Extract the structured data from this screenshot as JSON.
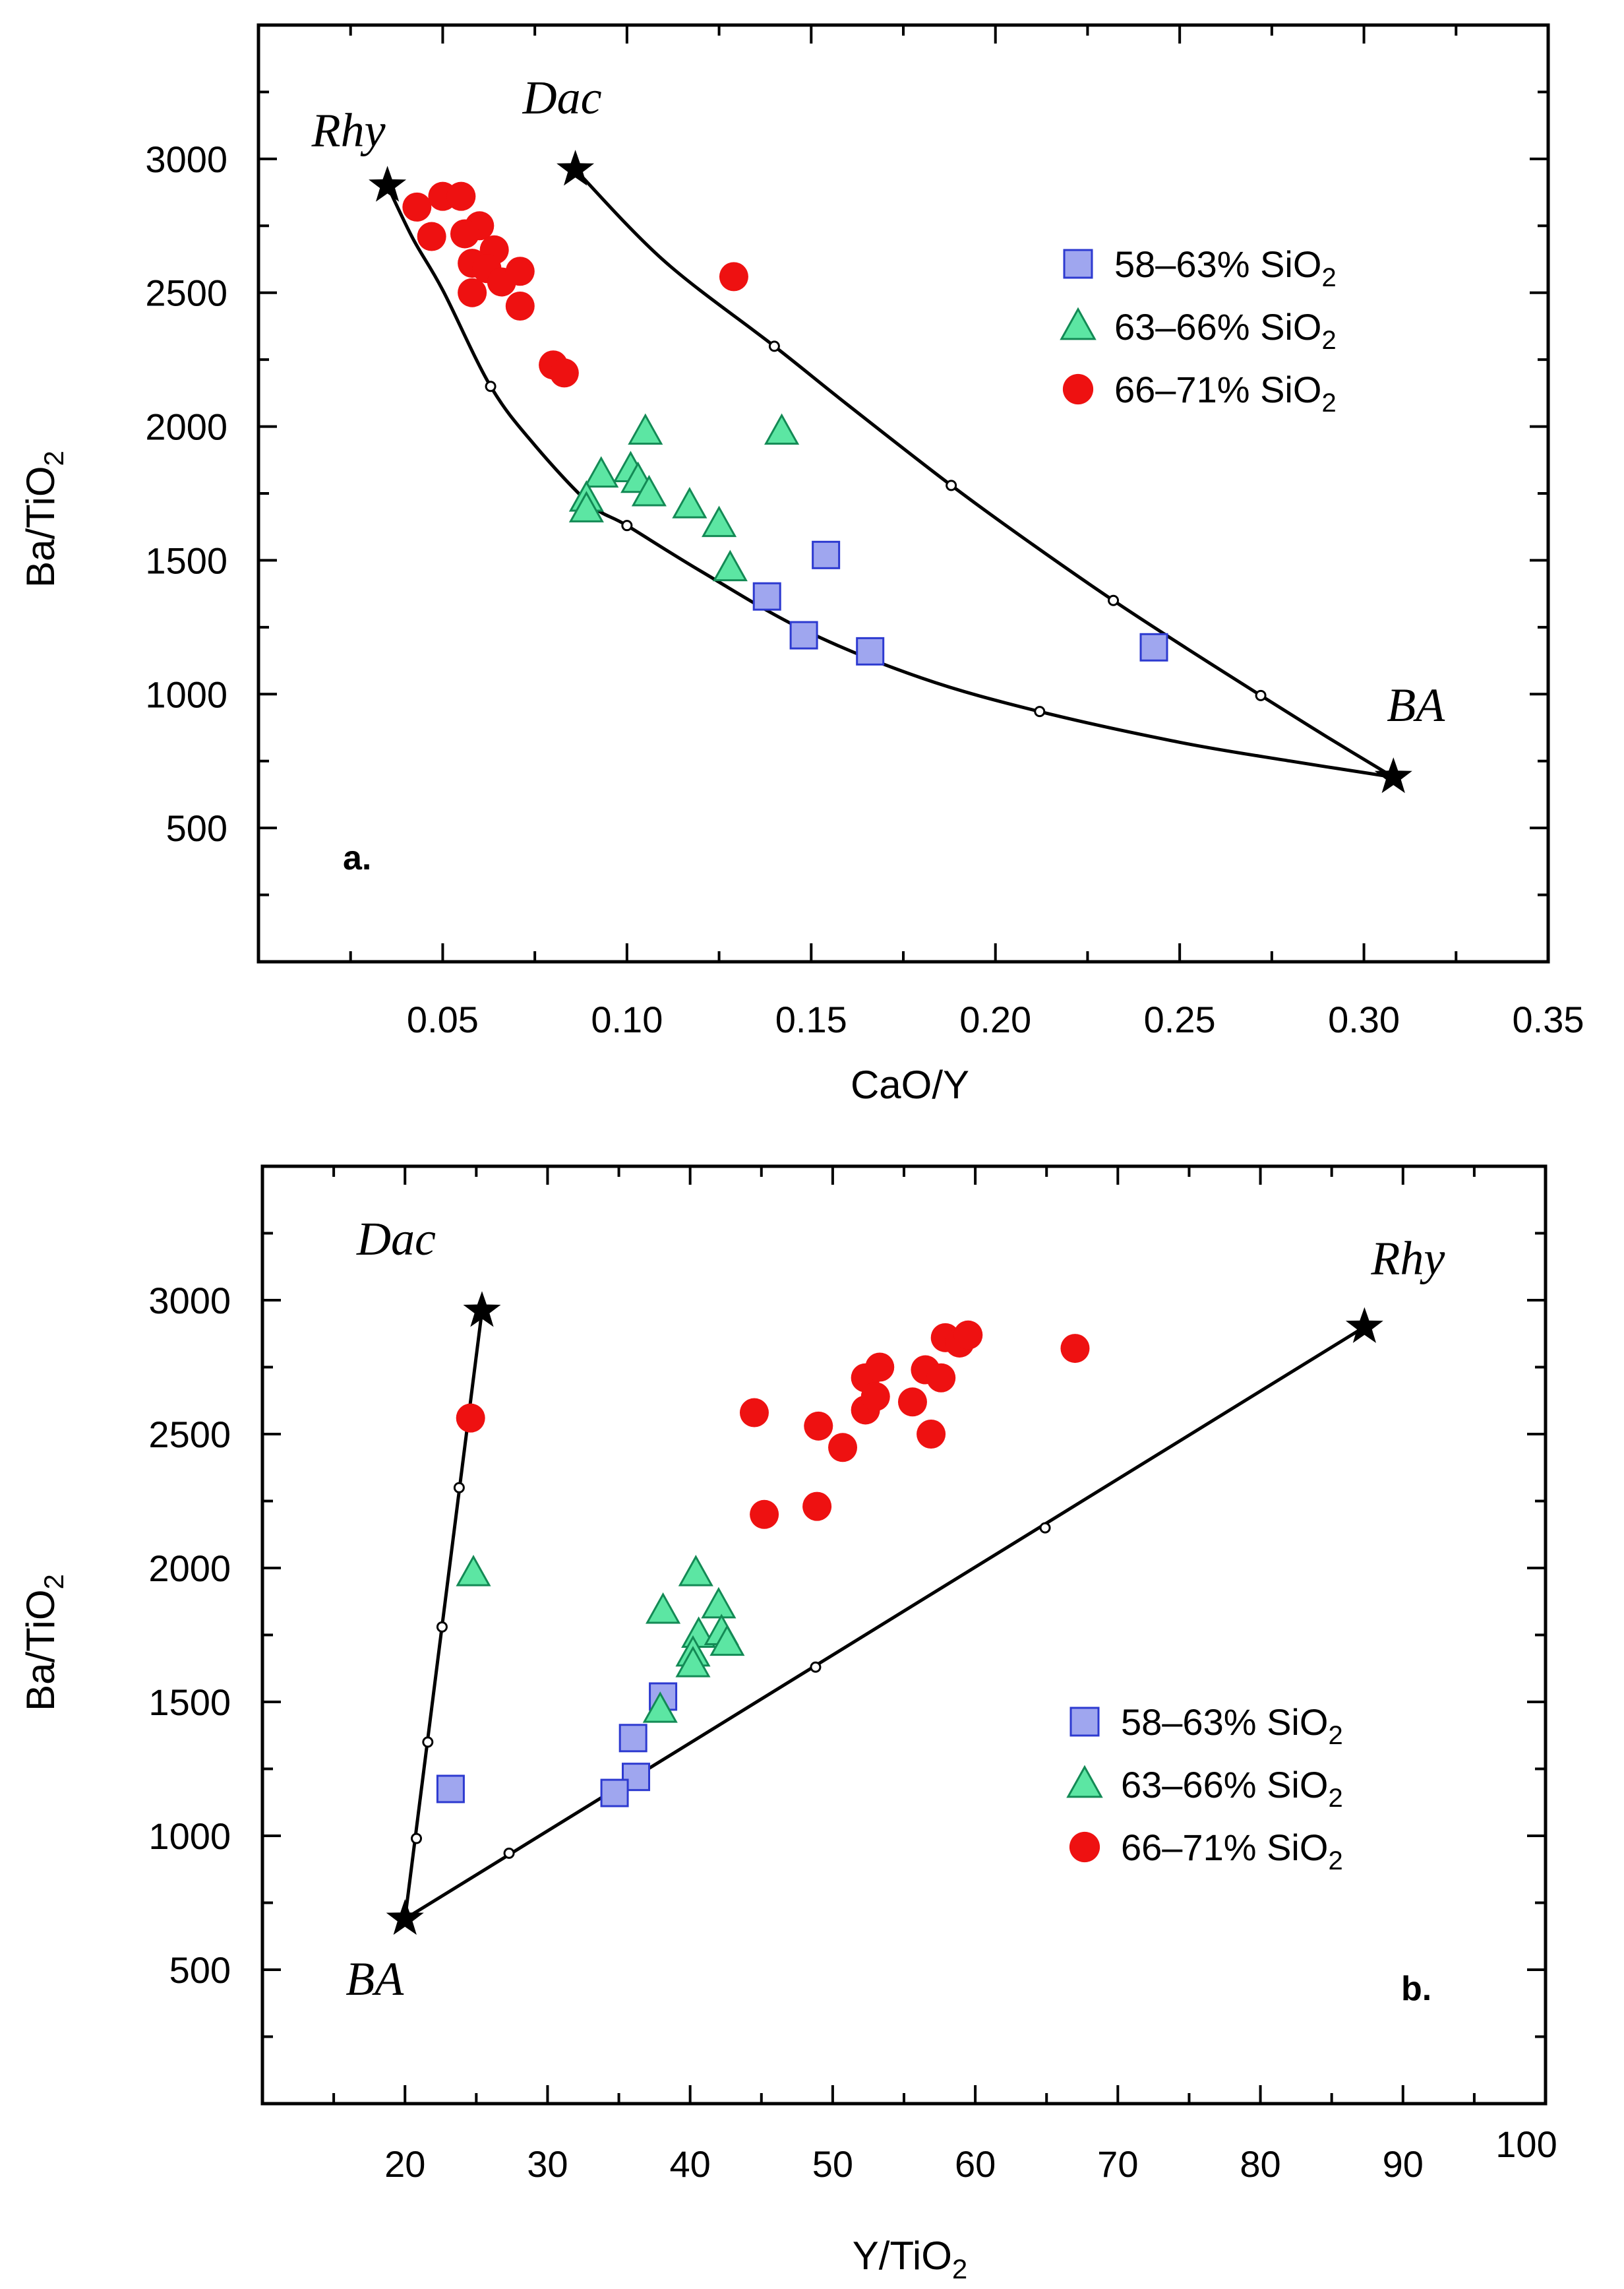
{
  "colors": {
    "square_fill": "#9fa6ef",
    "square_stroke": "#2d3ad0",
    "triangle_fill": "#5ce6a3",
    "triangle_stroke": "#138a55",
    "circle_fill": "#ee1111",
    "line": "#000000"
  },
  "chart_data": [
    {
      "type": "scatter",
      "panel_label": "a.",
      "xlabel": "CaO/Y",
      "ylabel_main": "Ba/TiO",
      "ylabel_sub": "2",
      "xlim": [
        0.0,
        0.35
      ],
      "ylim": [
        0,
        3500
      ],
      "xticks": [
        {
          "value": 0.05,
          "label": "0.05"
        },
        {
          "value": 0.1,
          "label": "0.10"
        },
        {
          "value": 0.15,
          "label": "0.15"
        },
        {
          "value": 0.2,
          "label": "0.20"
        },
        {
          "value": 0.25,
          "label": "0.25"
        },
        {
          "value": 0.3,
          "label": "0.30"
        },
        {
          "value": 0.35,
          "label": "0.35"
        }
      ],
      "yticks": [
        {
          "value": 500,
          "label": "500"
        },
        {
          "value": 1000,
          "label": "1000"
        },
        {
          "value": 1500,
          "label": "1500"
        },
        {
          "value": 2000,
          "label": "2000"
        },
        {
          "value": 2500,
          "label": "2500"
        },
        {
          "value": 3000,
          "label": "3000"
        }
      ],
      "legend": [
        {
          "marker": "square",
          "text": "58–63% SiO",
          "sub": "2"
        },
        {
          "marker": "triangle",
          "text": "63–66% SiO",
          "sub": "2"
        },
        {
          "marker": "circle",
          "text": "66–71% SiO",
          "sub": "2"
        }
      ],
      "endmembers": [
        {
          "name": "Rhy",
          "x": 0.035,
          "y": 2900
        },
        {
          "name": "Dac",
          "x": 0.086,
          "y": 2960
        },
        {
          "name": "BA",
          "x": 0.308,
          "y": 690
        }
      ],
      "mixing_curves": [
        {
          "name": "BA-Rhy",
          "points": [
            [
              0.035,
              2900
            ],
            [
              0.042,
              2700
            ],
            [
              0.05,
              2510
            ],
            [
              0.063,
              2150
            ],
            [
              0.075,
              1930
            ],
            [
              0.09,
              1710
            ],
            [
              0.1,
              1630
            ],
            [
              0.12,
              1460
            ],
            [
              0.148,
              1240
            ],
            [
              0.18,
              1060
            ],
            [
              0.212,
              935
            ],
            [
              0.25,
              820
            ],
            [
              0.28,
              750
            ],
            [
              0.308,
              690
            ]
          ],
          "tick_points": [
            [
              0.063,
              2150
            ],
            [
              0.1,
              1630
            ],
            [
              0.148,
              1240
            ],
            [
              0.212,
              935
            ]
          ]
        },
        {
          "name": "BA-Dac",
          "points": [
            [
              0.086,
              2960
            ],
            [
              0.11,
              2620
            ],
            [
              0.14,
              2300
            ],
            [
              0.16,
              2080
            ],
            [
              0.188,
              1780
            ],
            [
              0.21,
              1560
            ],
            [
              0.232,
              1350
            ],
            [
              0.252,
              1170
            ],
            [
              0.272,
              995
            ],
            [
              0.29,
              840
            ],
            [
              0.308,
              690
            ]
          ],
          "tick_points": [
            [
              0.14,
              2300
            ],
            [
              0.188,
              1780
            ],
            [
              0.232,
              1350
            ],
            [
              0.272,
              995
            ]
          ]
        }
      ],
      "series": [
        {
          "name": "58–63% SiO2",
          "marker": "square",
          "points": [
            [
              0.154,
              1520
            ],
            [
              0.138,
              1365
            ],
            [
              0.148,
              1220
            ],
            [
              0.166,
              1160
            ],
            [
              0.243,
              1175
            ]
          ]
        },
        {
          "name": "63–66% SiO2",
          "marker": "triangle",
          "points": [
            [
              0.105,
              1980
            ],
            [
              0.142,
              1980
            ],
            [
              0.101,
              1840
            ],
            [
              0.093,
              1820
            ],
            [
              0.103,
              1800
            ],
            [
              0.089,
              1730
            ],
            [
              0.106,
              1750
            ],
            [
              0.089,
              1690
            ],
            [
              0.117,
              1705
            ],
            [
              0.125,
              1635
            ],
            [
              0.128,
              1470
            ]
          ]
        },
        {
          "name": "66–71% SiO2",
          "marker": "circle",
          "points": [
            [
              0.043,
              2820
            ],
            [
              0.05,
              2860
            ],
            [
              0.055,
              2860
            ],
            [
              0.047,
              2710
            ],
            [
              0.06,
              2750
            ],
            [
              0.056,
              2720
            ],
            [
              0.064,
              2660
            ],
            [
              0.058,
              2610
            ],
            [
              0.062,
              2590
            ],
            [
              0.066,
              2540
            ],
            [
              0.071,
              2580
            ],
            [
              0.058,
              2500
            ],
            [
              0.071,
              2450
            ],
            [
              0.129,
              2560
            ],
            [
              0.08,
              2230
            ],
            [
              0.083,
              2200
            ]
          ]
        }
      ]
    },
    {
      "type": "scatter",
      "panel_label": "b.",
      "xlabel_main": "Y/TiO",
      "xlabel_sub": "2",
      "ylabel_main": "Ba/TiO",
      "ylabel_sub": "2",
      "xlim": [
        10,
        100
      ],
      "ylim": [
        0,
        3500
      ],
      "xticks": [
        {
          "value": 20,
          "label": "20"
        },
        {
          "value": 30,
          "label": "30"
        },
        {
          "value": 40,
          "label": "40"
        },
        {
          "value": 50,
          "label": "50"
        },
        {
          "value": 60,
          "label": "60"
        },
        {
          "value": 70,
          "label": "70"
        },
        {
          "value": 80,
          "label": "80"
        },
        {
          "value": 90,
          "label": "90"
        },
        {
          "value": 100,
          "label": "100"
        }
      ],
      "yticks": [
        {
          "value": 500,
          "label": "500"
        },
        {
          "value": 1000,
          "label": "1000"
        },
        {
          "value": 1500,
          "label": "1500"
        },
        {
          "value": 2000,
          "label": "2000"
        },
        {
          "value": 2500,
          "label": "2500"
        },
        {
          "value": 3000,
          "label": "3000"
        }
      ],
      "legend": [
        {
          "marker": "square",
          "text": "58–63% SiO",
          "sub": "2"
        },
        {
          "marker": "triangle",
          "text": "63–66% SiO",
          "sub": "2"
        },
        {
          "marker": "circle",
          "text": "66–71% SiO",
          "sub": "2"
        }
      ],
      "endmembers": [
        {
          "name": "Dac",
          "x": 25.4,
          "y": 2960
        },
        {
          "name": "Rhy",
          "x": 87.3,
          "y": 2900
        },
        {
          "name": "BA",
          "x": 20.0,
          "y": 690
        }
      ],
      "mixing_curves": [
        {
          "name": "BA-Dac",
          "points": [
            [
              20.0,
              690
            ],
            [
              25.4,
              2960
            ]
          ],
          "tick_points": [
            [
              20.8,
              990
            ],
            [
              21.6,
              1350
            ],
            [
              22.6,
              1780
            ],
            [
              23.8,
              2300
            ]
          ]
        },
        {
          "name": "BA-Rhy",
          "points": [
            [
              20.0,
              690
            ],
            [
              87.3,
              2900
            ]
          ],
          "tick_points": [
            [
              27.3,
              935
            ],
            [
              36.8,
              1240
            ],
            [
              48.8,
              1630
            ],
            [
              64.9,
              2150
            ]
          ]
        }
      ],
      "series": [
        {
          "name": "58–63% SiO2",
          "marker": "square",
          "points": [
            [
              23.2,
              1175
            ],
            [
              38.1,
              1520
            ],
            [
              36.0,
              1365
            ],
            [
              36.2,
              1220
            ],
            [
              34.7,
              1160
            ]
          ]
        },
        {
          "name": "63–66% SiO2",
          "marker": "triangle",
          "points": [
            [
              24.8,
              1980
            ],
            [
              40.4,
              1980
            ],
            [
              38.1,
              1840
            ],
            [
              42.0,
              1860
            ],
            [
              40.6,
              1750
            ],
            [
              42.2,
              1760
            ],
            [
              42.6,
              1720
            ],
            [
              40.2,
              1680
            ],
            [
              40.2,
              1640
            ],
            [
              37.9,
              1470
            ]
          ]
        },
        {
          "name": "66–71% SiO2",
          "marker": "circle",
          "points": [
            [
              24.6,
              2560
            ],
            [
              44.5,
              2580
            ],
            [
              49.0,
              2530
            ],
            [
              50.7,
              2450
            ],
            [
              45.2,
              2200
            ],
            [
              48.9,
              2230
            ],
            [
              52.3,
              2590
            ],
            [
              52.3,
              2710
            ],
            [
              53.3,
              2750
            ],
            [
              53.0,
              2640
            ],
            [
              55.6,
              2620
            ],
            [
              56.5,
              2740
            ],
            [
              56.9,
              2500
            ],
            [
              57.6,
              2710
            ],
            [
              57.9,
              2860
            ],
            [
              58.9,
              2840
            ],
            [
              59.5,
              2870
            ],
            [
              67.0,
              2820
            ]
          ]
        }
      ]
    }
  ]
}
